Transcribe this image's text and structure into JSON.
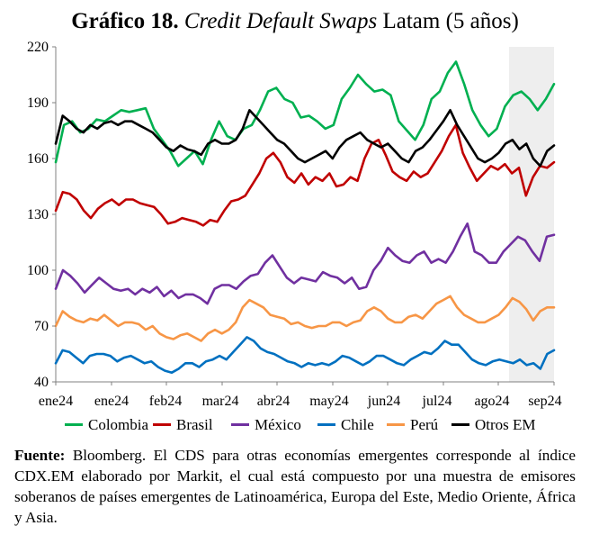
{
  "title": {
    "number": "Gráfico 18.",
    "italic": "Credit Default Swaps",
    "rest": "Latam (5 años)"
  },
  "source": {
    "label": "Fuente:",
    "text": "Bloomberg. El CDS para otras economías emergentes corresponde al índice CDX.EM elaborado por Markit, el cual está compuesto por una muestra de emisores soberanos de países emergentes de Latinoamérica, Europa del Este, Medio Oriente, África y Asia."
  },
  "colors": {
    "Colombia": "#00b050",
    "Brasil": "#c00000",
    "México": "#7030a0",
    "Chile": "#0070c0",
    "Perú": "#f79646",
    "Otros EM": "#000000",
    "shade": "#eeeeee",
    "axis": "#808080"
  },
  "chart_data": {
    "type": "line",
    "x_tick_labels": [
      "ene24",
      "ene24",
      "feb24",
      "mar24",
      "abr24",
      "may24",
      "jun24",
      "jul24",
      "ago24",
      "sep24"
    ],
    "ylim": [
      40,
      220
    ],
    "y_ticks": [
      40,
      70,
      100,
      130,
      160,
      190,
      220
    ],
    "shaded_period": "ago24 – sep24",
    "legend_position": "bottom",
    "series": [
      {
        "name": "Colombia",
        "values": [
          158,
          178,
          180,
          174,
          176,
          181,
          180,
          183,
          186,
          185,
          186,
          187,
          176,
          170,
          164,
          156,
          160,
          164,
          157,
          170,
          180,
          172,
          170,
          176,
          178,
          186,
          196,
          198,
          192,
          190,
          182,
          183,
          180,
          176,
          178,
          192,
          198,
          205,
          200,
          196,
          197,
          194,
          180,
          175,
          170,
          178,
          192,
          196,
          206,
          212,
          200,
          186,
          178,
          172,
          176,
          188,
          194,
          196,
          192,
          186,
          192,
          200
        ]
      },
      {
        "name": "Brasil",
        "values": [
          132,
          142,
          141,
          138,
          132,
          128,
          133,
          136,
          138,
          135,
          138,
          138,
          136,
          135,
          134,
          130,
          125,
          126,
          128,
          127,
          126,
          124,
          127,
          126,
          132,
          137,
          138,
          140,
          146,
          152,
          160,
          163,
          158,
          150,
          147,
          152,
          146,
          150,
          148,
          152,
          145,
          146,
          150,
          148,
          160,
          168,
          170,
          162,
          153,
          150,
          148,
          153,
          150,
          152,
          158,
          164,
          172,
          178,
          163,
          155,
          148,
          152,
          156,
          154,
          157,
          152,
          155,
          140,
          150,
          156,
          155,
          158
        ]
      },
      {
        "name": "México",
        "values": [
          90,
          100,
          97,
          93,
          88,
          92,
          96,
          93,
          90,
          89,
          90,
          87,
          90,
          88,
          91,
          86,
          89,
          85,
          87,
          87,
          85,
          82,
          90,
          92,
          92,
          90,
          94,
          97,
          98,
          104,
          108,
          102,
          96,
          93,
          96,
          95,
          94,
          99,
          97,
          96,
          93,
          96,
          90,
          91,
          100,
          105,
          112,
          108,
          105,
          104,
          108,
          110,
          104,
          106,
          104,
          110,
          118,
          125,
          110,
          108,
          104,
          104,
          110,
          114,
          118,
          116,
          110,
          105,
          118,
          119
        ]
      },
      {
        "name": "Chile",
        "values": [
          50,
          57,
          56,
          53,
          50,
          54,
          55,
          55,
          54,
          51,
          53,
          54,
          52,
          50,
          51,
          48,
          46,
          45,
          47,
          50,
          50,
          48,
          51,
          52,
          54,
          52,
          56,
          60,
          64,
          62,
          58,
          56,
          55,
          53,
          51,
          50,
          48,
          50,
          49,
          50,
          49,
          51,
          54,
          53,
          51,
          49,
          51,
          54,
          54,
          52,
          50,
          49,
          52,
          54,
          56,
          55,
          58,
          62,
          60,
          60,
          56,
          52,
          50,
          49,
          51,
          52,
          51,
          50,
          52,
          49,
          50,
          47,
          55,
          57
        ]
      },
      {
        "name": "Perú",
        "values": [
          70,
          78,
          75,
          73,
          72,
          74,
          73,
          76,
          73,
          70,
          72,
          72,
          71,
          68,
          70,
          66,
          64,
          63,
          65,
          66,
          64,
          62,
          66,
          68,
          66,
          68,
          72,
          80,
          84,
          82,
          80,
          76,
          75,
          74,
          71,
          72,
          70,
          69,
          70,
          70,
          72,
          72,
          70,
          72,
          73,
          78,
          80,
          78,
          74,
          72,
          72,
          75,
          76,
          74,
          78,
          82,
          84,
          86,
          80,
          76,
          74,
          72,
          72,
          74,
          76,
          80,
          85,
          83,
          79,
          73,
          78,
          80,
          80
        ]
      },
      {
        "name": "Otros EM",
        "values": [
          168,
          183,
          180,
          176,
          174,
          178,
          176,
          179,
          180,
          178,
          180,
          180,
          178,
          176,
          174,
          170,
          166,
          164,
          167,
          165,
          164,
          162,
          168,
          170,
          168,
          168,
          170,
          176,
          186,
          182,
          178,
          174,
          170,
          168,
          164,
          160,
          158,
          160,
          162,
          164,
          160,
          166,
          170,
          172,
          174,
          170,
          168,
          166,
          168,
          164,
          160,
          158,
          164,
          166,
          170,
          175,
          180,
          186,
          178,
          172,
          166,
          160,
          158,
          160,
          163,
          168,
          170,
          165,
          168,
          160,
          156,
          164,
          167
        ]
      }
    ]
  }
}
